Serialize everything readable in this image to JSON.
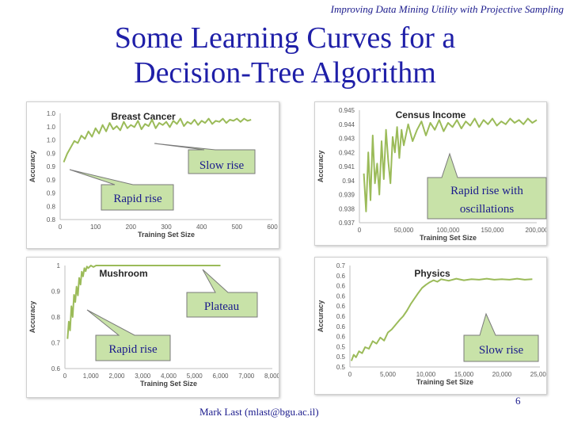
{
  "header_note": "Improving Data Mining Utility with Projective Sampling",
  "slide_title_line1": "Some Learning Curves for a",
  "slide_title_line2": "Decision-Tree Algorithm",
  "footer_author": "Mark Last (mlast@bgu.ac.il)",
  "footer_page": "6",
  "colors": {
    "line": "#9bbb59",
    "callout_fill": "#c8e2a8",
    "callout_stroke": "#7a7a7a",
    "title_blue": "#1f1fa8"
  },
  "callouts": {
    "breast_slow": "Slow rise",
    "breast_rapid": "Rapid rise",
    "census_rapid": "Rapid rise with oscillations",
    "census_rapid_line1": "Rapid rise with",
    "census_rapid_line2": "oscillations",
    "mushroom_plateau": "Plateau",
    "mushroom_rapid": "Rapid rise",
    "physics_slow": "Slow rise"
  },
  "chart_data": [
    {
      "id": "breast",
      "type": "line",
      "title": "Breast Cancer",
      "xlabel": "Training Set Size",
      "ylabel": "Accuracy",
      "xlim": [
        0,
        600
      ],
      "ylim": [
        0.8,
        1.0
      ],
      "xticks": [
        "0",
        "100",
        "200",
        "300",
        "400",
        "500",
        "600"
      ],
      "yticks": [
        "0.8",
        "0.8",
        "0.9",
        "0.9",
        "0.9",
        "0.9",
        "1.0",
        "1.0",
        "1.0"
      ],
      "x": [
        10,
        20,
        30,
        40,
        50,
        60,
        70,
        80,
        90,
        100,
        110,
        120,
        130,
        140,
        150,
        160,
        170,
        180,
        190,
        200,
        210,
        220,
        230,
        240,
        250,
        260,
        270,
        280,
        290,
        300,
        310,
        320,
        330,
        340,
        350,
        360,
        370,
        380,
        390,
        400,
        410,
        420,
        430,
        440,
        450,
        460,
        470,
        480,
        490,
        500,
        510,
        520,
        530,
        540
      ],
      "y": [
        0.908,
        0.924,
        0.936,
        0.948,
        0.944,
        0.958,
        0.952,
        0.966,
        0.956,
        0.972,
        0.962,
        0.978,
        0.966,
        0.982,
        0.97,
        0.976,
        0.968,
        0.984,
        0.972,
        0.978,
        0.974,
        0.986,
        0.97,
        0.98,
        0.976,
        0.988,
        0.972,
        0.982,
        0.978,
        0.984,
        0.974,
        0.986,
        0.98,
        0.99,
        0.976,
        0.984,
        0.98,
        0.988,
        0.978,
        0.986,
        0.982,
        0.99,
        0.98,
        0.986,
        0.984,
        0.99,
        0.982,
        0.988,
        0.986,
        0.99,
        0.984,
        0.99,
        0.986,
        0.988
      ]
    },
    {
      "id": "census",
      "type": "line",
      "title": "Census Income",
      "xlabel": "Training Set Size",
      "ylabel": "Accuracy",
      "xlim": [
        0,
        200000
      ],
      "ylim": [
        0.937,
        0.945
      ],
      "xticks": [
        "0",
        "50,000",
        "100,000",
        "150,000",
        "200,000"
      ],
      "yticks": [
        "0.937",
        "0.938",
        "0.939",
        "0.94",
        "0.941",
        "0.942",
        "0.943",
        "0.944",
        "0.945"
      ],
      "x": [
        5000,
        7500,
        10000,
        12500,
        15000,
        17500,
        20000,
        22500,
        25000,
        27500,
        30000,
        32500,
        35000,
        37500,
        40000,
        42500,
        45000,
        47500,
        50000,
        55000,
        60000,
        65000,
        70000,
        75000,
        80000,
        85000,
        90000,
        95000,
        100000,
        105000,
        110000,
        115000,
        120000,
        125000,
        130000,
        135000,
        140000,
        145000,
        150000,
        155000,
        160000,
        165000,
        170000,
        175000,
        180000,
        185000,
        190000,
        195000,
        200000
      ],
      "y": [
        0.9405,
        0.9378,
        0.942,
        0.9386,
        0.9432,
        0.9398,
        0.9412,
        0.939,
        0.9428,
        0.9401,
        0.9436,
        0.9414,
        0.9398,
        0.9431,
        0.942,
        0.9438,
        0.9416,
        0.9436,
        0.9425,
        0.944,
        0.9428,
        0.9436,
        0.9442,
        0.9432,
        0.9441,
        0.9436,
        0.9443,
        0.9435,
        0.9441,
        0.9438,
        0.9443,
        0.9437,
        0.9442,
        0.9439,
        0.9444,
        0.9438,
        0.9443,
        0.944,
        0.9444,
        0.9439,
        0.9442,
        0.944,
        0.9444,
        0.9441,
        0.9443,
        0.944,
        0.9444,
        0.9441,
        0.9443
      ]
    },
    {
      "id": "mushroom",
      "type": "line",
      "title": "Mushroom",
      "xlabel": "Training Set Size",
      "ylabel": "Accuracy",
      "xlim": [
        0,
        8000
      ],
      "ylim": [
        0.6,
        1.0
      ],
      "xticks": [
        "0",
        "1,000",
        "2,000",
        "3,000",
        "4,000",
        "5,000",
        "6,000",
        "7,000",
        "8,000"
      ],
      "yticks": [
        "0.6",
        "0.7",
        "0.8",
        "0.9",
        "1"
      ],
      "x": [
        100,
        150,
        200,
        250,
        300,
        350,
        400,
        450,
        500,
        550,
        600,
        650,
        700,
        750,
        800,
        850,
        900,
        1000,
        1100,
        1200,
        1400,
        1600,
        2000,
        2500,
        3000,
        3500,
        4000,
        4500,
        5000,
        5500,
        6000
      ],
      "y": [
        0.715,
        0.782,
        0.748,
        0.842,
        0.8,
        0.886,
        0.858,
        0.918,
        0.884,
        0.952,
        0.926,
        0.976,
        0.958,
        0.99,
        0.978,
        0.996,
        0.99,
        1.0,
        0.994,
        1.0,
        1.0,
        1.0,
        1.0,
        1.0,
        1.0,
        1.0,
        1.0,
        1.0,
        1.0,
        1.0,
        1.0
      ]
    },
    {
      "id": "physics",
      "type": "line",
      "title": "Physics",
      "xlabel": "Training Set Size",
      "ylabel": "Accuracy",
      "xlim": [
        0,
        25000
      ],
      "ylim": [
        0.5,
        0.7
      ],
      "xticks": [
        "0",
        "5,000",
        "10,000",
        "15,000",
        "20,000",
        "25,000"
      ],
      "yticks": [
        "0.5",
        "0.5",
        "0.5",
        "0.6",
        "0.6",
        "0.6",
        "0.6",
        "0.6",
        "0.6",
        "0.6",
        "0.7"
      ],
      "x": [
        200,
        500,
        800,
        1200,
        1600,
        2000,
        2500,
        3000,
        3500,
        4000,
        4500,
        5000,
        5500,
        6000,
        6500,
        7000,
        7500,
        8000,
        8500,
        9000,
        9500,
        10000,
        10500,
        11000,
        11500,
        12000,
        13000,
        14000,
        15000,
        16000,
        17000,
        18000,
        19000,
        20000,
        21000,
        22000,
        23000,
        24000
      ],
      "y": [
        0.512,
        0.524,
        0.519,
        0.531,
        0.527,
        0.539,
        0.536,
        0.551,
        0.546,
        0.558,
        0.552,
        0.568,
        0.574,
        0.583,
        0.592,
        0.6,
        0.611,
        0.624,
        0.635,
        0.646,
        0.656,
        0.662,
        0.667,
        0.671,
        0.668,
        0.673,
        0.67,
        0.674,
        0.671,
        0.673,
        0.672,
        0.674,
        0.672,
        0.673,
        0.672,
        0.674,
        0.672,
        0.673
      ]
    }
  ]
}
